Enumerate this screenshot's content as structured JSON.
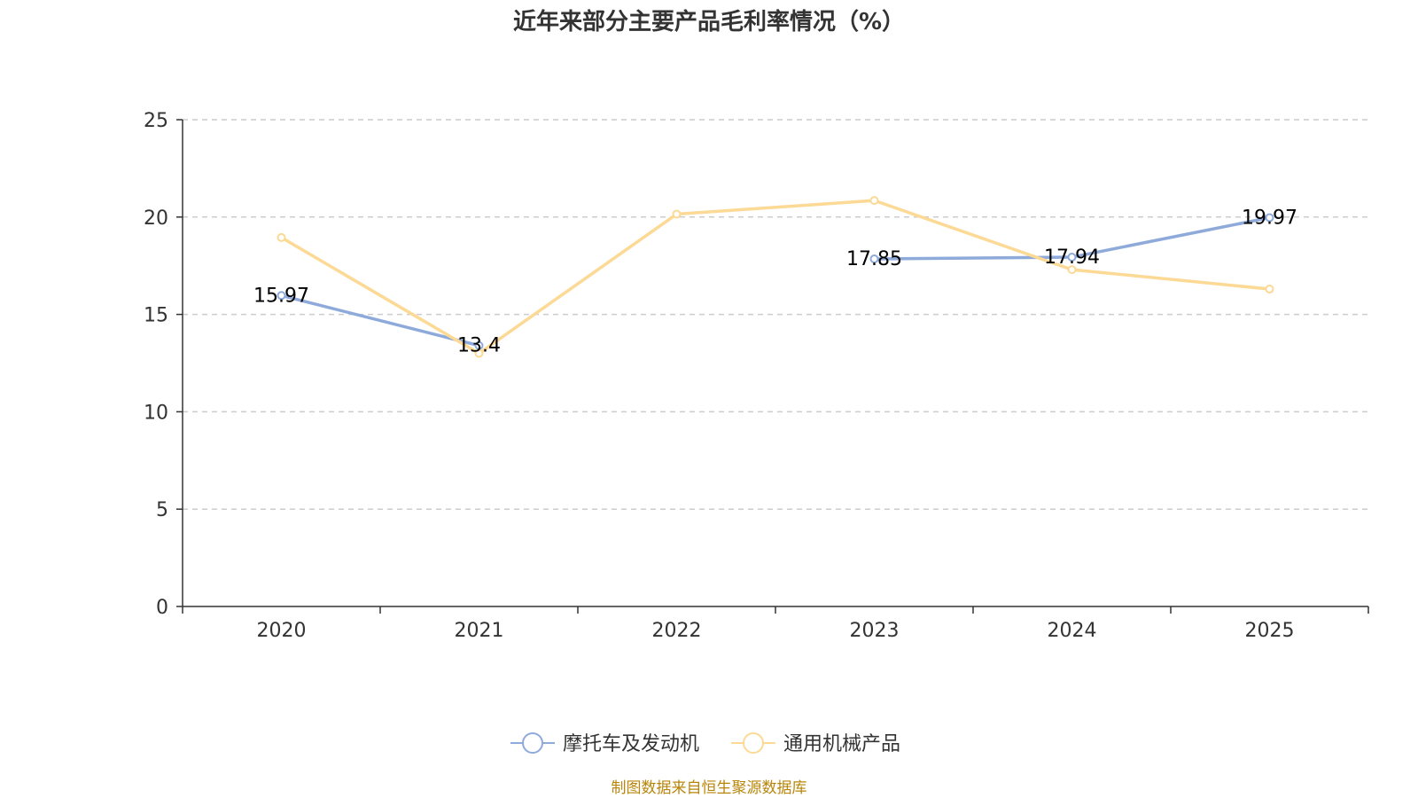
{
  "chart_data": {
    "type": "line",
    "title": "近年来部分主要产品毛利率情况（%）",
    "categories": [
      "2020",
      "2021",
      "2022",
      "2023",
      "2024",
      "2025"
    ],
    "ylim": [
      0,
      25
    ],
    "yticks": [
      0,
      5,
      10,
      15,
      20,
      25
    ],
    "y_tick_labels": [
      "0",
      "5",
      "10",
      "15",
      "20",
      "25"
    ],
    "grid": true,
    "legend_position": "bottom-center",
    "series": [
      {
        "name": "摩托车及发动机",
        "values": [
          15.97,
          13.4,
          null,
          17.85,
          17.94,
          19.97
        ],
        "labels": [
          "15.97",
          "13.4",
          null,
          "17.85",
          "17.94",
          "19.97"
        ],
        "color": "#8eaadb"
      },
      {
        "name": "通用机械产品",
        "values": [
          18.95,
          13.0,
          20.15,
          20.85,
          17.3,
          16.3
        ],
        "labels": [
          null,
          null,
          null,
          null,
          null,
          null
        ],
        "color": "#fcd994"
      }
    ]
  },
  "source": "制图数据来自恒生聚源数据库",
  "colors": {
    "axis": "#333333",
    "grid": "#cccccc",
    "source": "#b8860b"
  }
}
